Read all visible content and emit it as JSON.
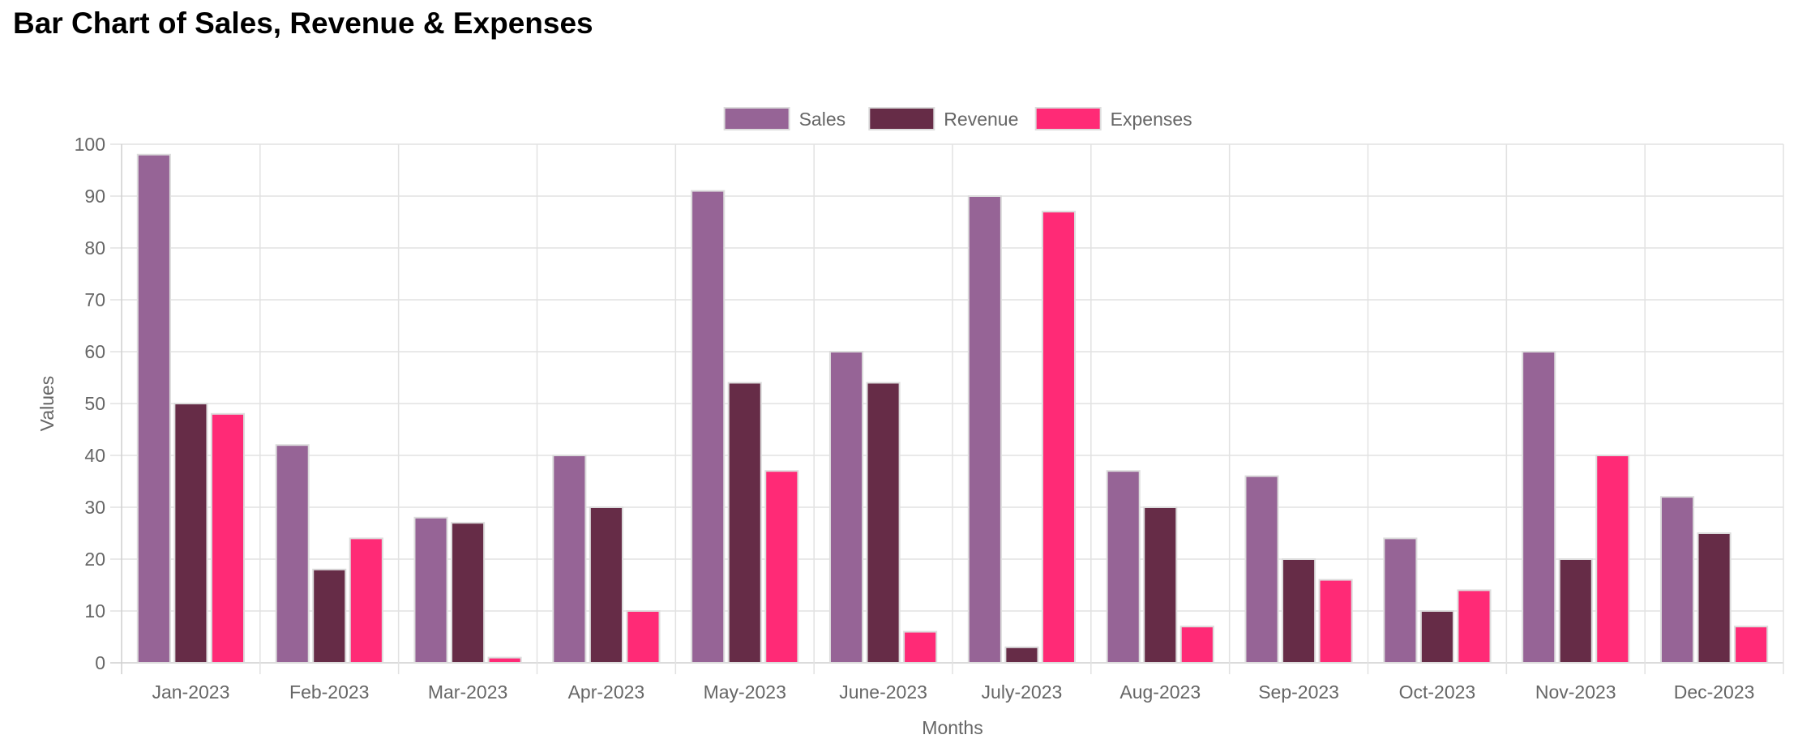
{
  "page": {
    "title": "Bar Chart of Sales, Revenue & Expenses"
  },
  "chart_data": {
    "type": "bar",
    "title": "Bar Chart of Sales, Revenue & Expenses",
    "xlabel": "Months",
    "ylabel": "Values",
    "ylim": [
      0,
      100
    ],
    "yticks": [
      0,
      10,
      20,
      30,
      40,
      50,
      60,
      70,
      80,
      90,
      100
    ],
    "grid": true,
    "legend_position": "top-center",
    "categories": [
      "Jan-2023",
      "Feb-2023",
      "Mar-2023",
      "Apr-2023",
      "May-2023",
      "June-2023",
      "July-2023",
      "Aug-2023",
      "Sep-2023",
      "Oct-2023",
      "Nov-2023",
      "Dec-2023"
    ],
    "series": [
      {
        "name": "Sales",
        "color": "#966496",
        "values": [
          98,
          42,
          28,
          40,
          91,
          60,
          90,
          37,
          36,
          24,
          60,
          32
        ]
      },
      {
        "name": "Revenue",
        "color": "#662c47",
        "values": [
          50,
          18,
          27,
          30,
          54,
          54,
          3,
          30,
          20,
          10,
          20,
          25
        ]
      },
      {
        "name": "Expenses",
        "color": "#ff2a76",
        "values": [
          48,
          24,
          1,
          10,
          37,
          6,
          87,
          7,
          16,
          14,
          40,
          7
        ]
      }
    ]
  }
}
